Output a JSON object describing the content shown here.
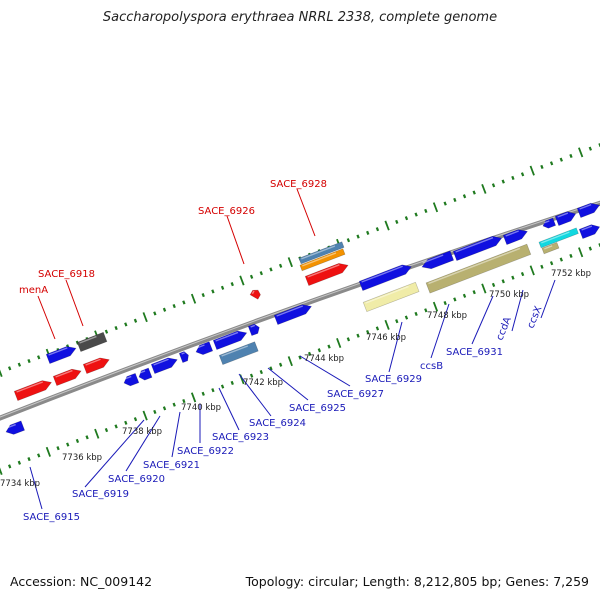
{
  "title": "Saccharopolyspora erythraea NRRL 2338, complete genome",
  "footer": {
    "accession": "Accession: NC_009142",
    "stats": "Topology: circular; Length: 8,212,805 bp; Genes: 7,259"
  },
  "colors": {
    "backbone": "#8a8a8a",
    "gene_blue": "#1010e0",
    "gene_red": "#ee1111",
    "steel_blue": "#4f82b0",
    "orange": "#f39200",
    "khaki": "#b8b070",
    "pale_yellow": "#f0eca8",
    "cyan": "#11d8e0",
    "dark_gray": "#4a4a4a",
    "dotted_ring": "#1f7a1f",
    "label_red": "#d40000",
    "label_blue": "#1a1ab8"
  },
  "top_labels": [
    "SACE_6928",
    "SACE_6926",
    "SACE_6918",
    "menA"
  ],
  "bottom_labels": [
    "SACE_6915",
    "SACE_6919",
    "SACE_6920",
    "SACE_6921",
    "SACE_6922",
    "SACE_6923",
    "SACE_6924",
    "SACE_6925",
    "SACE_6927",
    "SACE_6929",
    "ccsB",
    "SACE_6931",
    "ccdA",
    "ccsX"
  ],
  "tick_labels": [
    "7734 kbp",
    "7736 kbp",
    "7738 kbp",
    "7740 kbp",
    "7742 kbp",
    "7744 kbp",
    "7746 kbp",
    "7748 kbp",
    "7750 kbp",
    "7752 kbp"
  ]
}
